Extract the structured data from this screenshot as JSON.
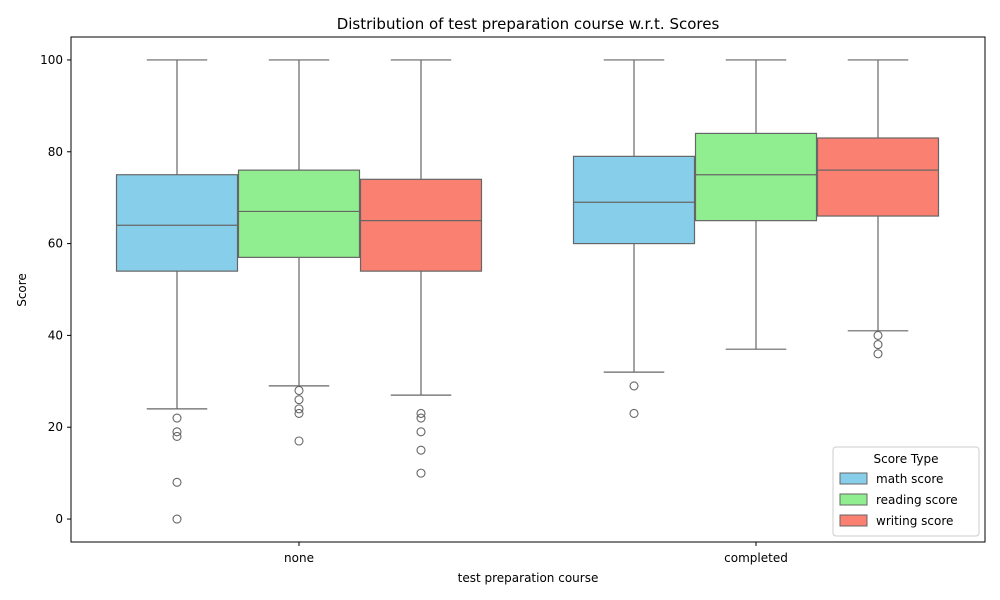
{
  "chart_data": {
    "type": "box",
    "title": "Distribution of test preparation course w.r.t. Scores",
    "xlabel": "test preparation course",
    "ylabel": "Score",
    "categories": [
      "none",
      "completed"
    ],
    "ylim": [
      -5,
      105
    ],
    "yticks": [
      0,
      20,
      40,
      60,
      80,
      100
    ],
    "grid": false,
    "legend": {
      "title": "Score Type",
      "placement": "lower-right"
    },
    "series": [
      {
        "name": "math score",
        "color": "#87CEEB",
        "boxes": [
          {
            "whisker_low": 24,
            "q1": 54,
            "median": 64,
            "q3": 75,
            "whisker_high": 100,
            "outliers": [
              22,
              19,
              18,
              8,
              0
            ]
          },
          {
            "whisker_low": 32,
            "q1": 60,
            "median": 69,
            "q3": 79,
            "whisker_high": 100,
            "outliers": [
              29,
              23
            ]
          }
        ]
      },
      {
        "name": "reading score",
        "color": "#90EE90",
        "boxes": [
          {
            "whisker_low": 29,
            "q1": 57,
            "median": 67,
            "q3": 76,
            "whisker_high": 100,
            "outliers": [
              28,
              26,
              24,
              23,
              17
            ]
          },
          {
            "whisker_low": 37,
            "q1": 65,
            "median": 75,
            "q3": 84,
            "whisker_high": 100,
            "outliers": []
          }
        ]
      },
      {
        "name": "writing score",
        "color": "#FA8072",
        "boxes": [
          {
            "whisker_low": 27,
            "q1": 54,
            "median": 65,
            "q3": 74,
            "whisker_high": 100,
            "outliers": [
              23,
              22,
              19,
              15,
              10
            ]
          },
          {
            "whisker_low": 41,
            "q1": 66,
            "median": 76,
            "q3": 83,
            "whisker_high": 100,
            "outliers": [
              40,
              38,
              36
            ]
          }
        ]
      }
    ]
  }
}
